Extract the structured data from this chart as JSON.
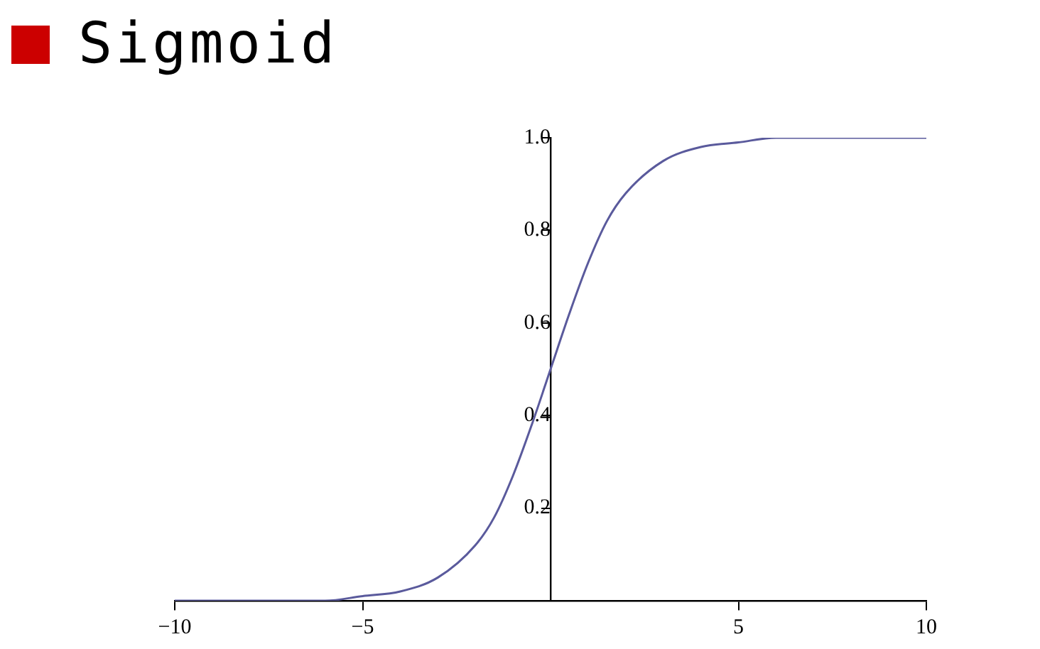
{
  "chart_data": {
    "type": "line",
    "title": "Sigmoid",
    "x": [
      -10,
      -9,
      -8,
      -7,
      -6,
      -5,
      -4,
      -3,
      -2,
      -1.5,
      -1,
      -0.5,
      0,
      0.5,
      1,
      1.5,
      2,
      3,
      4,
      5,
      6,
      7,
      8,
      9,
      10
    ],
    "series": [
      {
        "color": "#5a5a9c",
        "values": [
          0,
          0,
          0,
          0,
          0,
          0.01,
          0.02,
          0.05,
          0.12,
          0.18,
          0.27,
          0.38,
          0.5,
          0.62,
          0.73,
          0.82,
          0.88,
          0.95,
          0.98,
          0.99,
          1,
          1,
          1,
          1,
          1
        ]
      }
    ],
    "xlim": [
      -10,
      10
    ],
    "ylim": [
      0,
      1
    ],
    "xticks": [
      {
        "value": -10,
        "label": "−10"
      },
      {
        "value": -5,
        "label": "−5"
      },
      5,
      10
    ],
    "yticks": [
      0.2,
      0.4,
      0.6,
      0.8,
      {
        "value": 1,
        "label": "1.0"
      }
    ],
    "grid": false,
    "legend": false,
    "marker": "none",
    "line_style": "solid"
  }
}
